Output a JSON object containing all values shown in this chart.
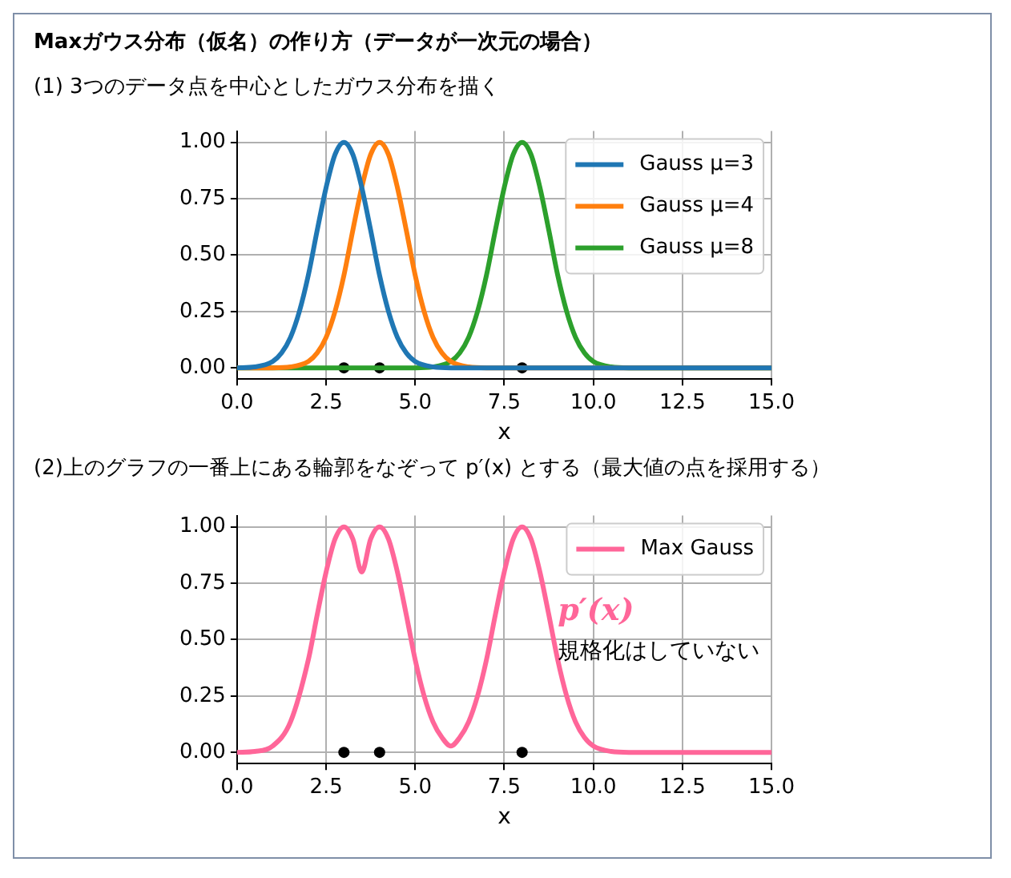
{
  "chart_data": [
    {
      "type": "line",
      "title": "Maxガウス分布（仮名）の作り方（データが一次元の場合）",
      "subtitle": "(1) 3つのデータ点を中心としたガウス分布を描く",
      "xlabel": "x",
      "xlim": [
        0,
        15
      ],
      "ylim": [
        -0.05,
        1.05
      ],
      "xticks": [
        {
          "value": 0,
          "label": "0.0"
        },
        {
          "value": 2.5,
          "label": "2.5"
        },
        {
          "value": 5,
          "label": "5.0"
        },
        {
          "value": 7.5,
          "label": "7.5"
        },
        {
          "value": 10,
          "label": "10.0"
        },
        {
          "value": 12.5,
          "label": "12.5"
        },
        {
          "value": 15,
          "label": "15.0"
        }
      ],
      "yticks": [
        {
          "value": 0,
          "label": "0.00"
        },
        {
          "value": 0.25,
          "label": "0.25"
        },
        {
          "value": 0.5,
          "label": "0.50"
        },
        {
          "value": 0.75,
          "label": "0.75"
        },
        {
          "value": 1,
          "label": "1.00"
        }
      ],
      "grid": true,
      "legend": "top right",
      "marker": "none",
      "line_style": "solid",
      "series": [
        {
          "name": "Gauss μ=3",
          "color": "#1f77b4",
          "x": [
            0,
            0.5,
            1,
            1.25,
            1.5,
            1.75,
            2,
            2.25,
            2.5,
            2.75,
            3,
            3.25,
            3.5,
            3.75,
            4,
            4.25,
            4.5,
            4.75,
            5,
            5.5,
            6,
            15
          ],
          "values": [
            0,
            0.004,
            0.028,
            0.066,
            0.135,
            0.25,
            0.41,
            0.61,
            0.8,
            0.946,
            1,
            0.946,
            0.8,
            0.61,
            0.41,
            0.25,
            0.135,
            0.066,
            0.028,
            0.004,
            0,
            0
          ]
        },
        {
          "name": "Gauss μ=4",
          "color": "#ff7f0e",
          "x": [
            0,
            1,
            1.5,
            2,
            2.25,
            2.5,
            2.75,
            3,
            3.25,
            3.5,
            3.75,
            4,
            4.25,
            4.5,
            4.75,
            5,
            5.25,
            5.5,
            5.75,
            6,
            6.5,
            7,
            15
          ],
          "values": [
            0,
            0,
            0.004,
            0.028,
            0.066,
            0.135,
            0.25,
            0.41,
            0.61,
            0.8,
            0.946,
            1,
            0.946,
            0.8,
            0.61,
            0.41,
            0.25,
            0.135,
            0.066,
            0.028,
            0.004,
            0,
            0
          ]
        },
        {
          "name": "Gauss μ=8",
          "color": "#2ca02c",
          "x": [
            0,
            5,
            5.5,
            6,
            6.25,
            6.5,
            6.75,
            7,
            7.25,
            7.5,
            7.75,
            8,
            8.25,
            8.5,
            8.75,
            9,
            9.25,
            9.5,
            9.75,
            10,
            10.5,
            11,
            15
          ],
          "values": [
            0,
            0,
            0.004,
            0.028,
            0.066,
            0.135,
            0.25,
            0.41,
            0.61,
            0.8,
            0.946,
            1,
            0.946,
            0.8,
            0.61,
            0.41,
            0.25,
            0.135,
            0.066,
            0.028,
            0.004,
            0,
            0
          ]
        },
        {
          "type": "scatter",
          "marker": "circle",
          "color": "#000000",
          "x": [
            3,
            4,
            8
          ],
          "values": [
            0,
            0,
            0
          ]
        }
      ]
    },
    {
      "type": "line",
      "title": "(2)上のグラフの一番上にある輪郭をなぞって p′(x) とする（最大値の点を採用する）",
      "xlabel": "x",
      "xlim": [
        0,
        15
      ],
      "ylim": [
        -0.05,
        1.05
      ],
      "xticks": [
        {
          "value": 0,
          "label": "0.0"
        },
        {
          "value": 2.5,
          "label": "2.5"
        },
        {
          "value": 5,
          "label": "5.0"
        },
        {
          "value": 7.5,
          "label": "7.5"
        },
        {
          "value": 10,
          "label": "10.0"
        },
        {
          "value": 12.5,
          "label": "12.5"
        },
        {
          "value": 15,
          "label": "15.0"
        }
      ],
      "yticks": [
        {
          "value": 0,
          "label": "0.00"
        },
        {
          "value": 0.25,
          "label": "0.25"
        },
        {
          "value": 0.5,
          "label": "0.50"
        },
        {
          "value": 0.75,
          "label": "0.75"
        },
        {
          "value": 1,
          "label": "1.00"
        }
      ],
      "grid": true,
      "legend": "top right",
      "marker": "none",
      "line_style": "solid",
      "annotations": [
        "p′(x)",
        "規格化はしていない"
      ],
      "series": [
        {
          "name": "Max Gauss",
          "color": "#ff6699",
          "x": [
            0,
            0.5,
            1,
            1.5,
            2,
            2.25,
            2.5,
            2.75,
            3,
            3.25,
            3.5,
            3.75,
            4,
            4.25,
            4.5,
            4.75,
            5,
            5.25,
            5.5,
            5.75,
            6,
            6.25,
            6.5,
            6.75,
            7,
            7.25,
            7.5,
            7.75,
            8,
            8.25,
            8.5,
            8.75,
            9,
            9.25,
            9.5,
            9.75,
            10,
            10.5,
            11,
            15
          ],
          "values": [
            0,
            0.004,
            0.028,
            0.135,
            0.41,
            0.61,
            0.8,
            0.946,
            1,
            0.946,
            0.8,
            0.946,
            1,
            0.946,
            0.8,
            0.61,
            0.41,
            0.25,
            0.135,
            0.066,
            0.028,
            0.066,
            0.135,
            0.25,
            0.41,
            0.61,
            0.8,
            0.946,
            1,
            0.946,
            0.8,
            0.61,
            0.41,
            0.25,
            0.135,
            0.066,
            0.028,
            0.004,
            0,
            0
          ]
        },
        {
          "type": "scatter",
          "marker": "circle",
          "color": "#000000",
          "x": [
            3,
            4,
            8
          ],
          "values": [
            0,
            0,
            0
          ]
        }
      ]
    }
  ]
}
